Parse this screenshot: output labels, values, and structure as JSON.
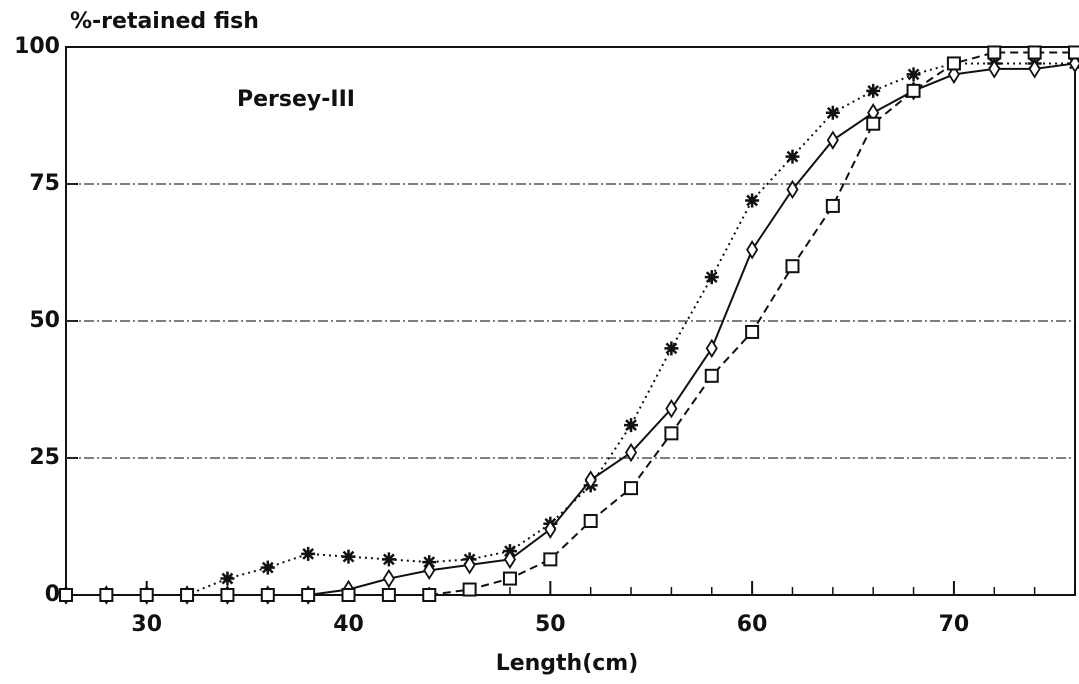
{
  "chart_data": {
    "type": "line",
    "y_label": "%-retained fish",
    "x_label": "Length(cm)",
    "annotation": "Persey-III",
    "x": [
      26,
      28,
      30,
      32,
      34,
      36,
      38,
      40,
      42,
      44,
      46,
      48,
      50,
      52,
      54,
      56,
      58,
      60,
      62,
      64,
      66,
      68,
      70,
      72,
      74,
      76
    ],
    "series": [
      {
        "color": "#111",
        "marker": "asterisk",
        "linestyle": "dotted",
        "values": [
          0,
          0,
          0,
          0,
          3,
          5,
          7.5,
          7,
          6.5,
          6,
          6.5,
          8,
          13,
          20,
          31,
          45,
          58,
          72,
          80,
          88,
          92,
          95,
          97,
          97,
          97,
          97
        ]
      },
      {
        "color": "#111",
        "marker": "diamond",
        "linestyle": "solid",
        "values": [
          0,
          0,
          0,
          0,
          0,
          0,
          0,
          1,
          3,
          4.5,
          5.5,
          6.5,
          12,
          21,
          26,
          34,
          45,
          63,
          74,
          83,
          88,
          92,
          95,
          96,
          96,
          97
        ]
      },
      {
        "color": "#111",
        "marker": "square",
        "linestyle": "dashed",
        "values": [
          0,
          0,
          0,
          0,
          0,
          0,
          0,
          0,
          0,
          0,
          1,
          3,
          6.5,
          13.5,
          19.5,
          29.5,
          40,
          48,
          60,
          71,
          86,
          92,
          97,
          99,
          99,
          99
        ]
      }
    ],
    "xlim": [
      26,
      76
    ],
    "ylim": [
      0,
      100
    ],
    "xticks": [
      30,
      40,
      50,
      60,
      70
    ],
    "yticks": [
      0,
      25,
      50,
      75,
      100
    ],
    "grid": true
  }
}
